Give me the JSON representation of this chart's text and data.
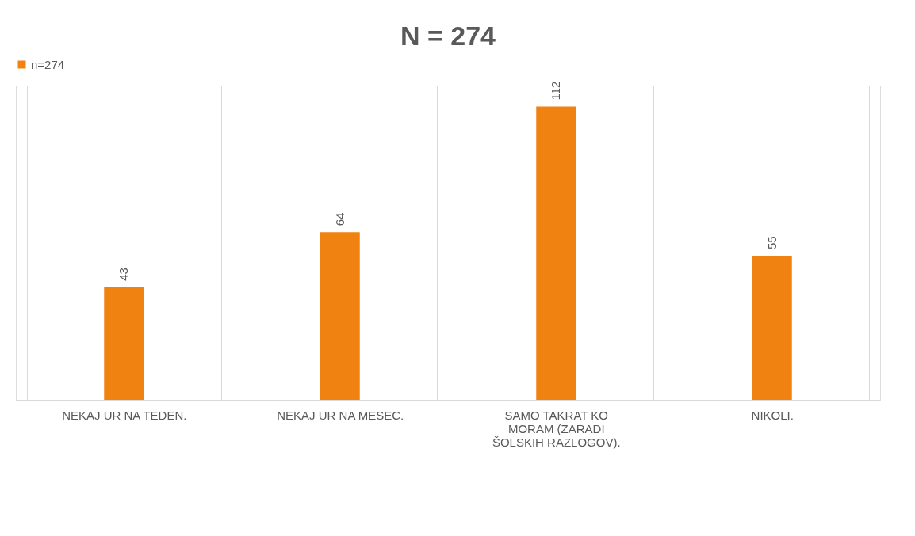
{
  "chart_data": {
    "type": "bar",
    "title": "N = 274",
    "categories": [
      "NEKAJ UR NA TEDEN.",
      "NEKAJ UR NA MESEC.",
      "SAMO TAKRAT KO MORAM (ZARADI ŠOLSKIH RAZLOGOV).",
      "NIKOLI."
    ],
    "series": [
      {
        "name": "n=274",
        "color": "#f08211",
        "values": [
          43,
          64,
          112,
          55
        ]
      }
    ],
    "data_labels": true,
    "grid": "x",
    "legend": "top"
  }
}
